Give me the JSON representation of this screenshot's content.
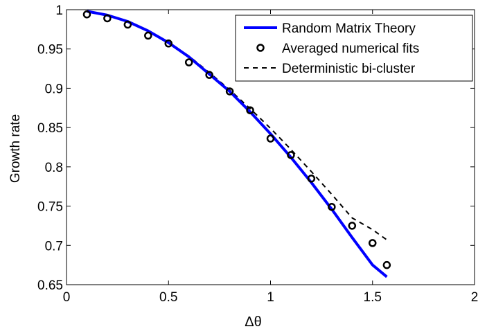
{
  "chart_data": {
    "type": "line",
    "title": "",
    "xlabel": "Δθ",
    "ylabel": "Growth rate",
    "xlim": [
      0,
      2
    ],
    "ylim": [
      0.65,
      1
    ],
    "xticks": [
      {
        "value": 0,
        "label": "0"
      },
      {
        "value": 0.5,
        "label": "0.5"
      },
      {
        "value": 1,
        "label": "1"
      },
      {
        "value": 1.5,
        "label": "1.5"
      },
      {
        "value": 2,
        "label": "2"
      }
    ],
    "yticks": [
      {
        "value": 0.65,
        "label": "0.65"
      },
      {
        "value": 0.7,
        "label": "0.7"
      },
      {
        "value": 0.75,
        "label": "0.75"
      },
      {
        "value": 0.8,
        "label": "0.8"
      },
      {
        "value": 0.85,
        "label": "0.85"
      },
      {
        "value": 0.9,
        "label": "0.9"
      },
      {
        "value": 0.95,
        "label": "0.95"
      },
      {
        "value": 1,
        "label": "1"
      }
    ],
    "grid": false,
    "legend_position": "top-right",
    "series": [
      {
        "name": "Random Matrix Theory",
        "kind": "line",
        "color": "#0000ff",
        "x": [
          0.1,
          0.2,
          0.3,
          0.4,
          0.5,
          0.6,
          0.7,
          0.8,
          0.9,
          1.0,
          1.1,
          1.2,
          1.3,
          1.4,
          1.5,
          1.57
        ],
        "y": [
          0.998,
          0.993,
          0.985,
          0.973,
          0.958,
          0.94,
          0.918,
          0.896,
          0.87,
          0.842,
          0.812,
          0.78,
          0.746,
          0.71,
          0.675,
          0.66
        ]
      },
      {
        "name": "Averaged numerical fits",
        "kind": "markers",
        "color": "#000000",
        "x": [
          0.1,
          0.2,
          0.3,
          0.4,
          0.5,
          0.6,
          0.7,
          0.8,
          0.9,
          1.0,
          1.1,
          1.2,
          1.3,
          1.4,
          1.5,
          1.57
        ],
        "y": [
          0.994,
          0.989,
          0.981,
          0.967,
          0.957,
          0.933,
          0.917,
          0.896,
          0.872,
          0.836,
          0.815,
          0.785,
          0.749,
          0.725,
          0.703,
          0.675
        ]
      },
      {
        "name": "Deterministic bi-cluster",
        "kind": "dashed",
        "color": "#000000",
        "x": [
          0.1,
          0.2,
          0.3,
          0.4,
          0.5,
          0.6,
          0.7,
          0.8,
          0.9,
          1.0,
          1.1,
          1.2,
          1.3,
          1.4,
          1.5,
          1.57
        ],
        "y": [
          0.998,
          0.993,
          0.985,
          0.973,
          0.958,
          0.941,
          0.92,
          0.898,
          0.874,
          0.849,
          0.822,
          0.794,
          0.765,
          0.735,
          0.72,
          0.707
        ]
      }
    ]
  }
}
